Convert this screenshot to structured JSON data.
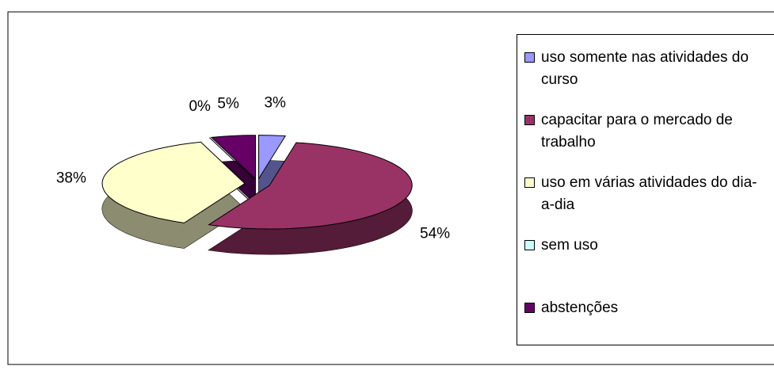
{
  "chart_data": {
    "type": "pie",
    "categories": [
      "uso somente nas atividades do curso",
      "capacitar para o mercado de trabalho",
      "uso em várias atividades do dia-a-dia",
      "sem uso",
      "abstenções"
    ],
    "values": [
      3,
      54,
      38,
      0,
      5
    ],
    "value_labels": [
      "3%",
      "54%",
      "38%",
      "0%",
      "5%"
    ],
    "colors": [
      "#9999ff",
      "#993366",
      "#ffffcc",
      "#ccffff",
      "#660066"
    ],
    "legend": "right"
  }
}
